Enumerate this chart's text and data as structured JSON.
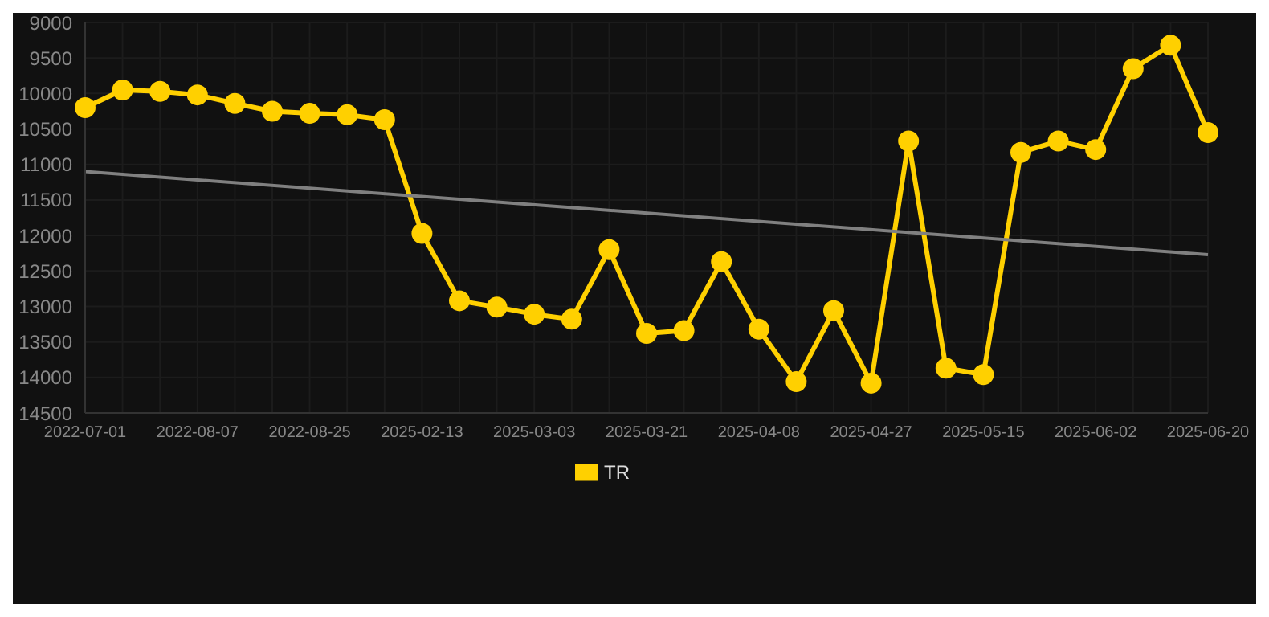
{
  "chart_data": {
    "type": "line",
    "categories": [
      "2022-07-01",
      null,
      null,
      "2022-08-07",
      null,
      null,
      "2022-08-25",
      null,
      null,
      "2025-02-13",
      null,
      null,
      "2025-03-03",
      null,
      null,
      "2025-03-21",
      null,
      null,
      "2025-04-08",
      null,
      null,
      "2025-04-27",
      null,
      null,
      "2025-05-15",
      null,
      null,
      "2025-06-02",
      null,
      null,
      "2025-06-20"
    ],
    "series": [
      {
        "name": "TR",
        "color": "#ffd000",
        "values": [
          10200,
          9950,
          9970,
          10020,
          10140,
          10250,
          10280,
          10300,
          10370,
          11970,
          12920,
          13010,
          13110,
          13180,
          12200,
          13380,
          13340,
          12370,
          13320,
          14060,
          13060,
          14080,
          10670,
          13870,
          13960,
          10830,
          10670,
          10790,
          9650,
          9320,
          10550
        ]
      },
      {
        "type": "line",
        "color": "#808080",
        "marker": "none",
        "values": [
          11100,
          null,
          null,
          null,
          null,
          null,
          null,
          null,
          null,
          null,
          null,
          null,
          null,
          null,
          null,
          null,
          null,
          null,
          null,
          null,
          null,
          null,
          null,
          null,
          null,
          null,
          null,
          null,
          null,
          null,
          12270
        ]
      }
    ],
    "ylim": [
      14500,
      9000
    ],
    "yticks": [
      9000,
      9500,
      10000,
      10500,
      11000,
      11500,
      12000,
      12500,
      13000,
      13500,
      14000,
      14500
    ],
    "grid": true,
    "legend": "bottom",
    "marker": "circle",
    "line_style": "solid"
  }
}
